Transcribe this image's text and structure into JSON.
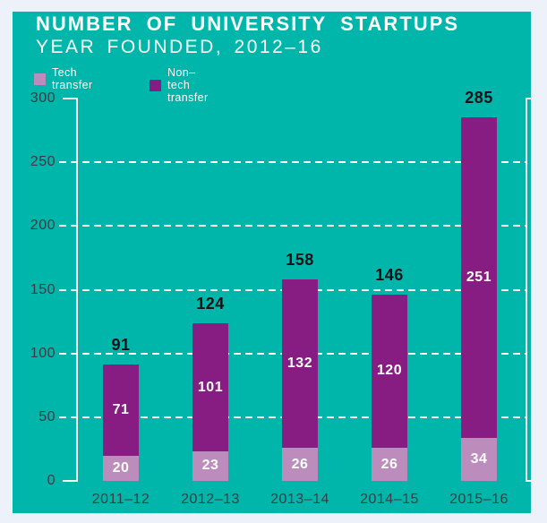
{
  "header": {
    "title": "NUMBER OF UNIVERSITY STARTUPS",
    "subtitle": "YEAR FOUNDED, 2012–16"
  },
  "legend": {
    "items": [
      {
        "label": "Tech transfer",
        "color": "#bc8cbc"
      },
      {
        "label": "Non–tech transfer",
        "color": "#871c82"
      }
    ]
  },
  "chart_data": {
    "type": "bar",
    "stacked": true,
    "title": "NUMBER OF UNIVERSITY STARTUPS",
    "subtitle": "YEAR FOUNDED, 2012–16",
    "categories": [
      "2011–12",
      "2012–13",
      "2013–14",
      "2014–15",
      "2015–16"
    ],
    "series": [
      {
        "name": "Tech transfer",
        "color": "#bc8cbc",
        "values": [
          20,
          23,
          26,
          26,
          34
        ]
      },
      {
        "name": "Non–tech transfer",
        "color": "#871c82",
        "values": [
          71,
          101,
          132,
          120,
          251
        ]
      }
    ],
    "totals": [
      91,
      124,
      158,
      146,
      285
    ],
    "xlabel": "",
    "ylabel": "",
    "ylim": [
      0,
      300
    ],
    "yticks": [
      0,
      50,
      100,
      150,
      200,
      250,
      300
    ],
    "grid": "dashed-white-horizontal",
    "legend_position": "top-left"
  },
  "colors": {
    "background": "#edf1fa",
    "panel": "#00b6ab",
    "axis_text": "#3c3a42",
    "total_text": "#101013",
    "grid_line": "#ffffff"
  }
}
